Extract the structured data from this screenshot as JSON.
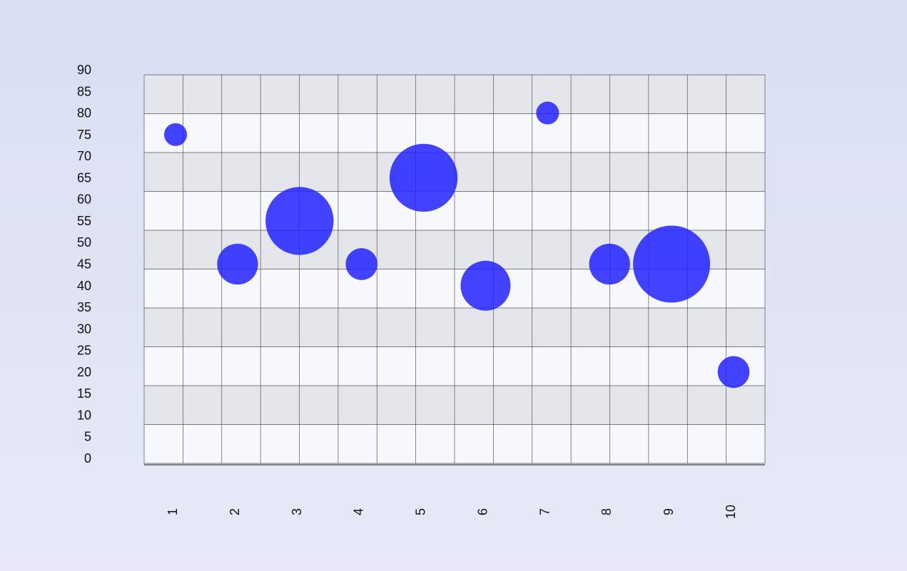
{
  "colors": {
    "bubble": "#2222ff",
    "band_dark": "#e4e6ec",
    "band_light": "#f6f8fd",
    "grid_line": "#555555"
  },
  "chart_data": {
    "type": "bubble",
    "title": "",
    "xlabel": "",
    "ylabel": "",
    "x_ticks": [
      "1",
      "2",
      "3",
      "4",
      "5",
      "6",
      "7",
      "8",
      "9",
      "10"
    ],
    "y_ticks": [
      "0",
      "5",
      "10",
      "15",
      "20",
      "25",
      "30",
      "35",
      "40",
      "45",
      "50",
      "55",
      "60",
      "65",
      "70",
      "75",
      "80",
      "85",
      "90"
    ],
    "ylim": [
      0,
      90
    ],
    "grid": true,
    "legend": "none",
    "points": [
      {
        "x": 1,
        "y": 75,
        "size": 3
      },
      {
        "x": 2,
        "y": 45,
        "size": 5
      },
      {
        "x": 3,
        "y": 55,
        "size": 8
      },
      {
        "x": 4,
        "y": 45,
        "size": 4
      },
      {
        "x": 5,
        "y": 65,
        "size": 8
      },
      {
        "x": 6,
        "y": 40,
        "size": 6
      },
      {
        "x": 7,
        "y": 80,
        "size": 3
      },
      {
        "x": 8,
        "y": 45,
        "size": 5
      },
      {
        "x": 9,
        "y": 45,
        "size": 9
      },
      {
        "x": 10,
        "y": 20,
        "size": 4
      }
    ]
  }
}
